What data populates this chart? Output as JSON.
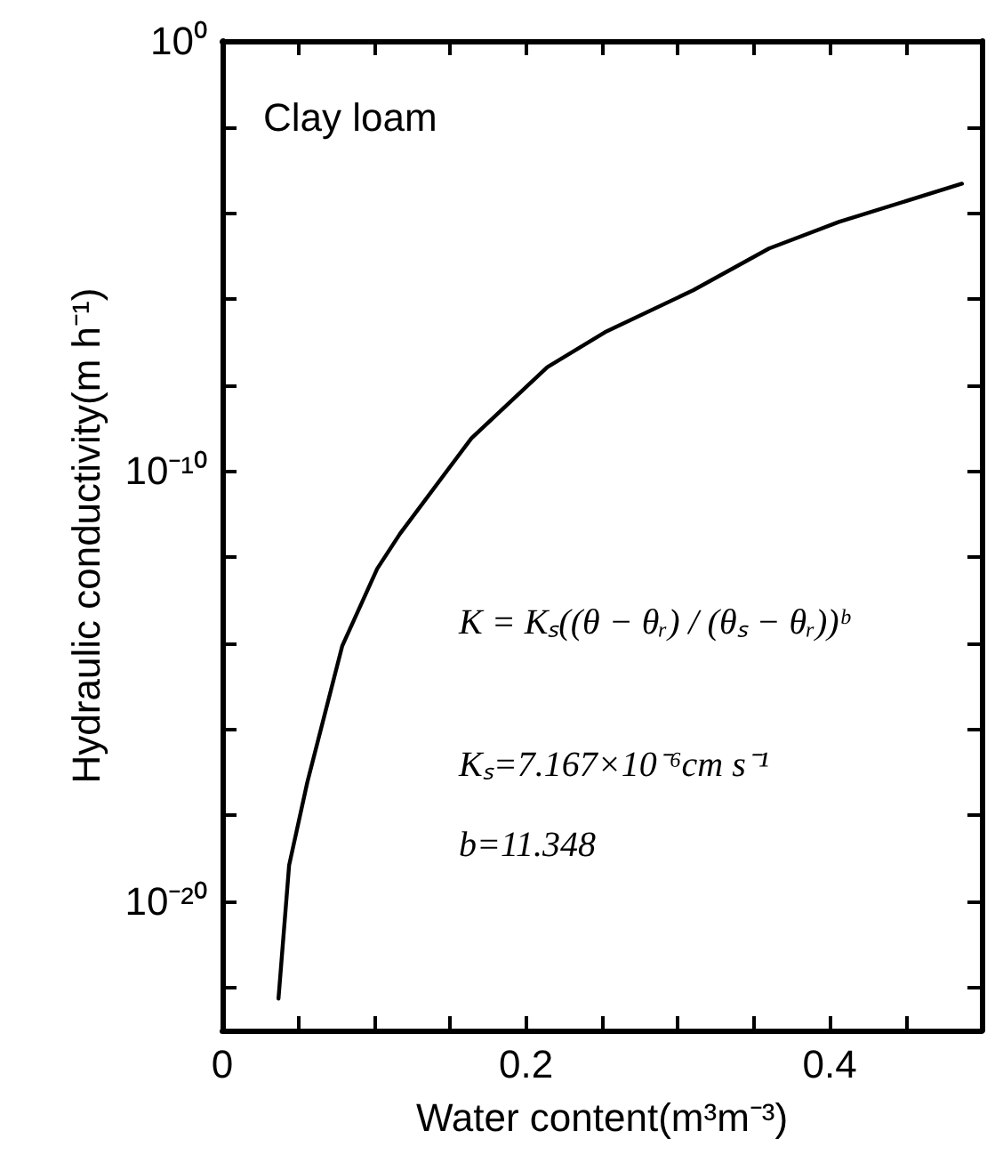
{
  "chart_data": {
    "type": "line",
    "xlabel": "Water content(m³m⁻³)",
    "ylabel": "Hydraulic conductivity(m h⁻¹)",
    "annotations": [
      "Clay loam",
      "K = Kₛ((θ − θᵣ) / (θₛ − θᵣ))ᵇ",
      "Kₛ=7.167×10⁻⁶cm s⁻¹",
      "b=11.348"
    ],
    "x": [
      0.037,
      0.044,
      0.056,
      0.079,
      0.102,
      0.117,
      0.164,
      0.214,
      0.252,
      0.31,
      0.36,
      0.406,
      0.487
    ],
    "series": [
      {
        "color": "#000000",
        "values": [
          5.5e-23,
          6.9e-20,
          5.9e-18,
          8.7e-15,
          5.4e-13,
          3.5e-12,
          5.8e-10,
          2.6e-08,
          1.7e-07,
          1.6e-06,
          1.5e-05,
          6.2e-05,
          0.00048
        ]
      }
    ],
    "log": "y",
    "marker": "none",
    "line_style": "solid",
    "xlim": [
      0,
      0.5
    ],
    "xticks": [
      0,
      {
        "value": 0.05,
        "label": null
      },
      {
        "value": 0.1,
        "label": null
      },
      {
        "value": 0.15,
        "label": null
      },
      0.2,
      {
        "value": 0.25,
        "label": null
      },
      {
        "value": 0.3,
        "label": null
      },
      {
        "value": 0.35,
        "label": null
      },
      0.4,
      {
        "value": 0.45,
        "label": null
      }
    ],
    "ylim": [
      1e-23,
      1
    ],
    "yticks": [
      {
        "value": 1,
        "label": "10⁰"
      },
      {
        "value": 0.01,
        "label": null
      },
      {
        "value": 0.0001,
        "label": null
      },
      {
        "value": 1e-06,
        "label": null
      },
      {
        "value": 1e-08,
        "label": null
      },
      {
        "value": 1e-10,
        "label": "10⁻¹⁰"
      },
      {
        "value": 1e-12,
        "label": null
      },
      {
        "value": 1e-14,
        "label": null
      },
      {
        "value": 1e-16,
        "label": null
      },
      {
        "value": 1e-18,
        "label": null
      },
      {
        "value": 1e-20,
        "label": "10⁻²⁰"
      },
      {
        "value": 1e-22,
        "label": null
      }
    ]
  }
}
